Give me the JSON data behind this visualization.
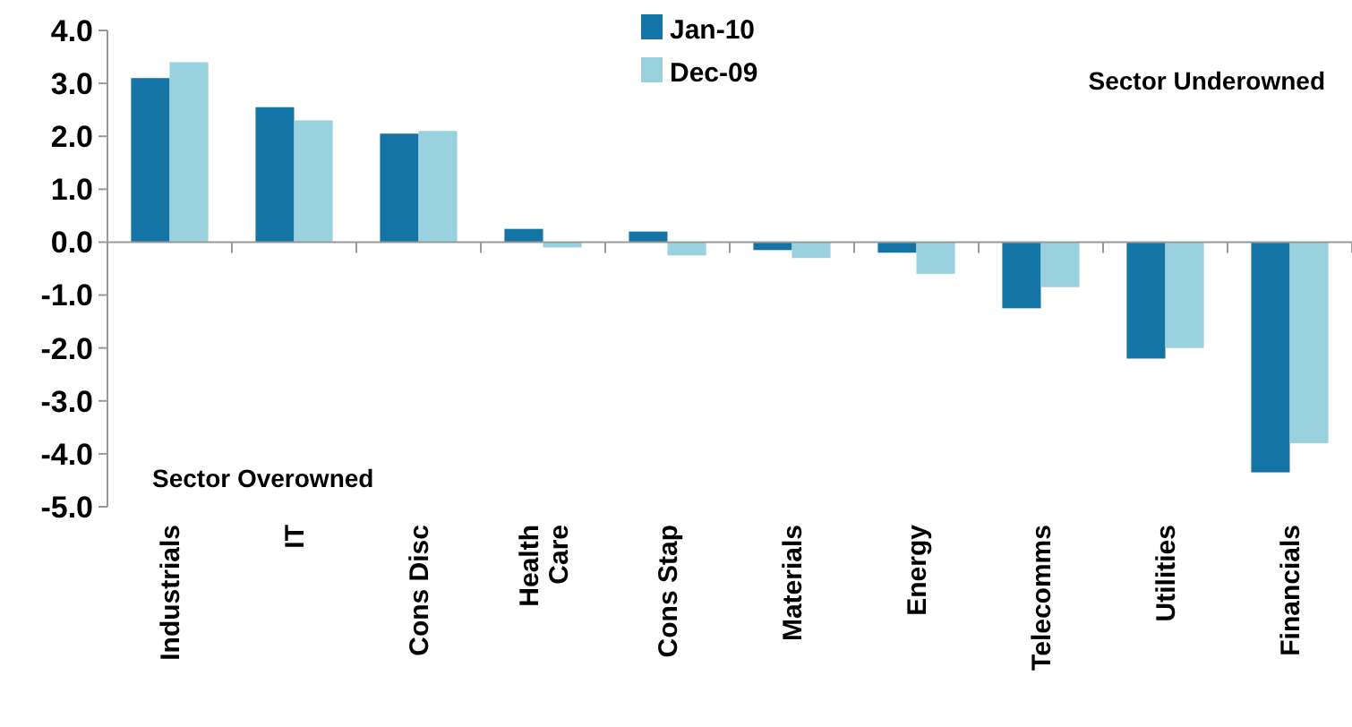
{
  "chart_data": {
    "type": "bar",
    "categories": [
      "Industrials",
      "IT",
      "Cons Disc",
      "Health\nCare",
      "Cons Stap",
      "Materials",
      "Energy",
      "Telecomms",
      "Utilities",
      "Financials"
    ],
    "series": [
      {
        "name": "Jan-10",
        "color": "#1574a6",
        "values": [
          3.1,
          2.55,
          2.05,
          0.25,
          0.2,
          -0.15,
          -0.2,
          -1.25,
          -2.2,
          -4.35
        ]
      },
      {
        "name": "Dec-09",
        "color": "#99d1de",
        "values": [
          3.4,
          2.3,
          2.1,
          -0.1,
          -0.25,
          -0.3,
          -0.6,
          -0.85,
          -2.0,
          -3.8
        ]
      }
    ],
    "ylim": [
      -5,
      4
    ],
    "yticks": [
      {
        "value": 4,
        "label": "4.0"
      },
      {
        "value": 3,
        "label": "3.0"
      },
      {
        "value": 2,
        "label": "2.0"
      },
      {
        "value": 1,
        "label": "1.0"
      },
      {
        "value": 0,
        "label": "0.0"
      },
      {
        "value": -1,
        "label": "-1.0"
      },
      {
        "value": -2,
        "label": "-2.0"
      },
      {
        "value": -3,
        "label": "-3.0"
      },
      {
        "value": -4,
        "label": "-4.0"
      },
      {
        "value": -5,
        "label": "-5.0"
      }
    ],
    "legend": "top",
    "annotations": [
      "Sector Underowned",
      "Sector Overowned"
    ]
  }
}
